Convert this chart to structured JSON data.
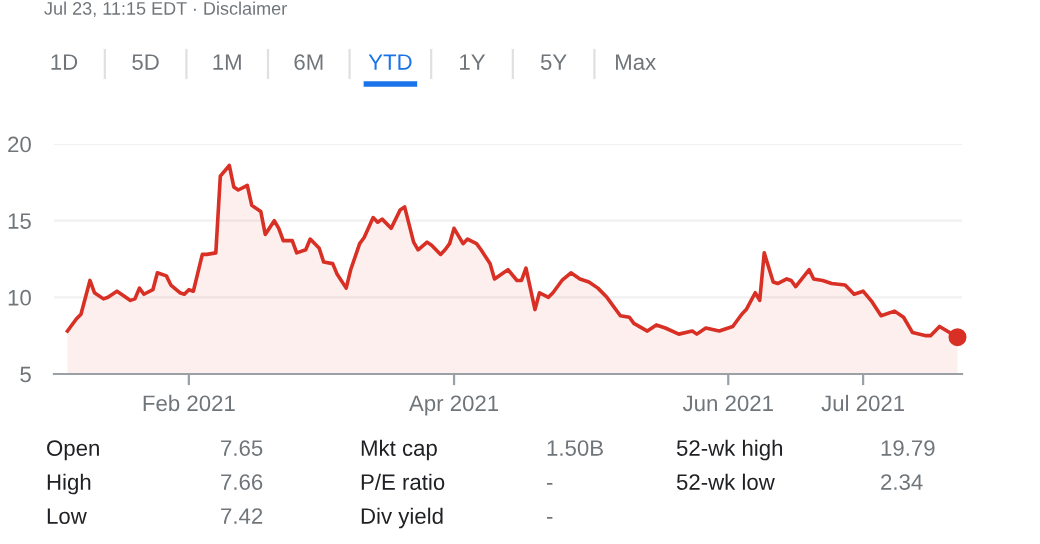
{
  "chart_data": {
    "type": "area",
    "subtitle": "Jul 23, 11:15 EDT · Disclaimer",
    "annotations": [
      "1D",
      "5D",
      "1M",
      "6M",
      "YTD",
      "1Y",
      "5Y",
      "Max",
      "Open",
      "7.65",
      "High",
      "7.66",
      "Low",
      "7.42",
      "Mkt cap",
      "1.50B",
      "P/E ratio",
      "-",
      "Div yield",
      "-",
      "52-wk high",
      "19.79",
      "52-wk low",
      "2.34"
    ],
    "xlim": [
      "2021-01-02",
      "2021-07-23"
    ],
    "xticks": [
      {
        "value": "2021-02-01",
        "label": "Feb 2021"
      },
      {
        "value": "2021-04-01",
        "label": "Apr 2021"
      },
      {
        "value": "2021-06-01",
        "label": "Jun 2021"
      },
      {
        "value": "2021-07-01",
        "label": "Jul 2021"
      }
    ],
    "ylim": [
      5,
      20
    ],
    "yticks": [
      5,
      10,
      15,
      20
    ],
    "grid": "y",
    "legend": false,
    "series": [
      {
        "color": "#d93025",
        "x": [
          "2021-01-05",
          "2021-01-07",
          "2021-01-08",
          "2021-01-10",
          "2021-01-11",
          "2021-01-13",
          "2021-01-14",
          "2021-01-16",
          "2021-01-17",
          "2021-01-19",
          "2021-01-20",
          "2021-01-21",
          "2021-01-22",
          "2021-01-24",
          "2021-01-25",
          "2021-01-27",
          "2021-01-28",
          "2021-01-30",
          "2021-01-31",
          "2021-02-01",
          "2021-02-02",
          "2021-02-04",
          "2021-02-05",
          "2021-02-07",
          "2021-02-08",
          "2021-02-10",
          "2021-02-11",
          "2021-02-12",
          "2021-02-14",
          "2021-02-15",
          "2021-02-17",
          "2021-02-18",
          "2021-02-20",
          "2021-02-21",
          "2021-02-22",
          "2021-02-24",
          "2021-02-25",
          "2021-02-27",
          "2021-02-28",
          "2021-03-02",
          "2021-03-03",
          "2021-03-05",
          "2021-03-06",
          "2021-03-08",
          "2021-03-09",
          "2021-03-11",
          "2021-03-12",
          "2021-03-14",
          "2021-03-15",
          "2021-03-16",
          "2021-03-18",
          "2021-03-20",
          "2021-03-21",
          "2021-03-23",
          "2021-03-24",
          "2021-03-26",
          "2021-03-27",
          "2021-03-29",
          "2021-03-30",
          "2021-03-31",
          "2021-04-01",
          "2021-04-03",
          "2021-04-04",
          "2021-04-06",
          "2021-04-07",
          "2021-04-09",
          "2021-04-10",
          "2021-04-12",
          "2021-04-13",
          "2021-04-15",
          "2021-04-16",
          "2021-04-17",
          "2021-04-19",
          "2021-04-20",
          "2021-04-22",
          "2021-04-23",
          "2021-04-25",
          "2021-04-27",
          "2021-04-29",
          "2021-05-01",
          "2021-05-03",
          "2021-05-05",
          "2021-05-08",
          "2021-05-10",
          "2021-05-11",
          "2021-05-14",
          "2021-05-16",
          "2021-05-18",
          "2021-05-21",
          "2021-05-24",
          "2021-05-25",
          "2021-05-27",
          "2021-05-30",
          "2021-06-02",
          "2021-06-04",
          "2021-06-05",
          "2021-06-07",
          "2021-06-08",
          "2021-06-09",
          "2021-06-11",
          "2021-06-12",
          "2021-06-14",
          "2021-06-15",
          "2021-06-16",
          "2021-06-19",
          "2021-06-20",
          "2021-06-22",
          "2021-06-24",
          "2021-06-27",
          "2021-06-29",
          "2021-07-01",
          "2021-07-03",
          "2021-07-05",
          "2021-07-08",
          "2021-07-10",
          "2021-07-12",
          "2021-07-15",
          "2021-07-16",
          "2021-07-18",
          "2021-07-22"
        ],
        "values": [
          7.8,
          8.6,
          8.9,
          11.1,
          10.3,
          9.9,
          10.0,
          10.4,
          10.2,
          9.8,
          9.9,
          10.6,
          10.2,
          10.5,
          11.6,
          11.4,
          10.8,
          10.3,
          10.2,
          10.5,
          10.4,
          12.8,
          12.8,
          12.9,
          17.9,
          18.6,
          17.2,
          17.0,
          17.3,
          16.0,
          15.6,
          14.1,
          15.0,
          14.5,
          13.7,
          13.7,
          12.9,
          13.1,
          13.8,
          13.2,
          12.3,
          12.2,
          11.5,
          10.6,
          11.8,
          13.5,
          13.9,
          15.2,
          14.9,
          15.1,
          14.5,
          15.7,
          15.9,
          13.6,
          13.1,
          13.6,
          13.4,
          12.8,
          13.1,
          13.5,
          14.5,
          13.5,
          13.8,
          13.5,
          13.1,
          12.2,
          11.2,
          11.6,
          11.8,
          11.1,
          11.1,
          11.9,
          9.2,
          10.3,
          10.0,
          10.3,
          11.1,
          11.6,
          11.2,
          11.0,
          10.6,
          10.0,
          8.8,
          8.7,
          8.3,
          7.8,
          8.2,
          8.0,
          7.6,
          7.8,
          7.6,
          8.0,
          7.8,
          8.1,
          8.9,
          9.2,
          10.3,
          9.8,
          12.9,
          11.0,
          10.9,
          11.2,
          11.1,
          10.7,
          11.8,
          11.2,
          11.1,
          10.9,
          10.8,
          10.2,
          10.4,
          9.7,
          8.8,
          9.1,
          8.7,
          7.7,
          7.5,
          7.5,
          8.1,
          7.4
        ]
      },
      {
        "type": "scatter",
        "color": "#d93025",
        "marker": "circle",
        "x": [
          "2021-07-22"
        ],
        "values": [
          7.4
        ]
      }
    ]
  }
}
